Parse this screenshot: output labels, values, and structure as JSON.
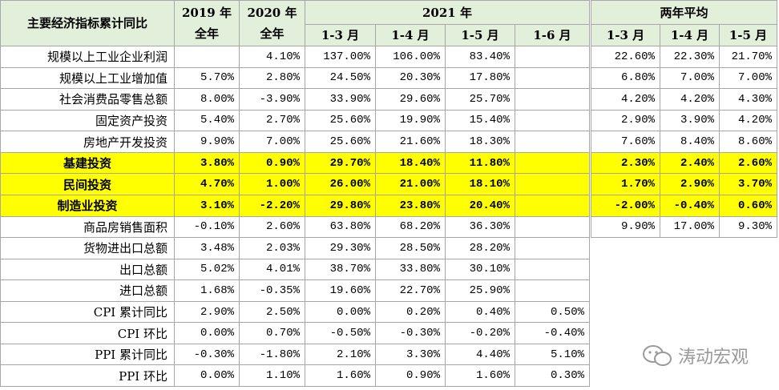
{
  "header": {
    "corner": "主要经济指标累计同比",
    "columns": [
      {
        "top": "2019 年",
        "bottom": "全年"
      },
      {
        "top": "2020 年",
        "bottom": "全年"
      }
    ],
    "group_2021": {
      "title": "2021 年",
      "periods": [
        "1-3 月",
        "1-4 月",
        "1-5 月",
        "1-6 月"
      ]
    },
    "group_avg": {
      "title": "两年平均",
      "periods": [
        "1-3 月",
        "1-4 月",
        "1-5 月"
      ]
    }
  },
  "rows": [
    {
      "label": "规模以上工业企业利润",
      "values": [
        null,
        "4.10%",
        "137.00%",
        "106.00%",
        "83.40%",
        null
      ],
      "avg": [
        "22.60%",
        "22.30%",
        "21.70%"
      ]
    },
    {
      "label": "规模以上工业增加值",
      "values": [
        "5.70%",
        "2.80%",
        "24.50%",
        "20.30%",
        "17.80%",
        null
      ],
      "avg": [
        "6.80%",
        "7.00%",
        "7.00%"
      ]
    },
    {
      "label": "社会消费品零售总额",
      "values": [
        "8.00%",
        "-3.90%",
        "33.90%",
        "29.60%",
        "25.70%",
        null
      ],
      "avg": [
        "4.20%",
        "4.20%",
        "4.30%"
      ]
    },
    {
      "label": "固定资产投资",
      "values": [
        "5.40%",
        "2.70%",
        "25.60%",
        "19.90%",
        "15.40%",
        null
      ],
      "avg": [
        "2.90%",
        "3.90%",
        "4.20%"
      ]
    },
    {
      "label": "房地产开发投资",
      "values": [
        "9.90%",
        "7.00%",
        "25.60%",
        "21.60%",
        "18.30%",
        null
      ],
      "avg": [
        "7.60%",
        "8.40%",
        "8.60%"
      ]
    },
    {
      "label": "基建投资",
      "values": [
        "3.80%",
        "0.90%",
        "29.70%",
        "18.40%",
        "11.80%",
        null
      ],
      "avg": [
        "2.30%",
        "2.40%",
        "2.60%"
      ],
      "highlight": true
    },
    {
      "label": "民间投资",
      "values": [
        "4.70%",
        "1.00%",
        "26.00%",
        "21.00%",
        "18.10%",
        null
      ],
      "avg": [
        "1.70%",
        "2.90%",
        "3.70%"
      ],
      "highlight": true
    },
    {
      "label": "制造业投资",
      "values": [
        "3.10%",
        "-2.20%",
        "29.80%",
        "23.80%",
        "20.40%",
        null
      ],
      "avg": [
        "-2.00%",
        "-0.40%",
        "0.60%"
      ],
      "highlight": true
    },
    {
      "label": "商品房销售面积",
      "values": [
        "-0.10%",
        "2.60%",
        "63.80%",
        "68.20%",
        "36.30%",
        null
      ],
      "avg": [
        "9.90%",
        "17.00%",
        "9.30%"
      ]
    },
    {
      "label": "货物进出口总额",
      "values": [
        "3.48%",
        "2.03%",
        "29.30%",
        "28.50%",
        "28.20%",
        null
      ]
    },
    {
      "label": "出口总额",
      "values": [
        "5.02%",
        "4.01%",
        "38.70%",
        "33.80%",
        "30.10%",
        null
      ]
    },
    {
      "label": "进口总额",
      "values": [
        "1.68%",
        "-0.35%",
        "19.60%",
        "22.70%",
        "25.90%",
        null
      ]
    },
    {
      "label": "CPI 累计同比",
      "values": [
        "2.90%",
        "2.50%",
        "0.00%",
        "0.20%",
        "0.40%",
        "0.50%"
      ]
    },
    {
      "label": "CPI 环比",
      "values": [
        "0.00%",
        "0.70%",
        "-0.50%",
        "-0.30%",
        "-0.20%",
        "-0.40%"
      ]
    },
    {
      "label": "PPI 累计同比",
      "values": [
        "-0.30%",
        "-1.80%",
        "2.10%",
        "3.30%",
        "4.40%",
        "5.10%"
      ]
    },
    {
      "label": "PPI 环比",
      "values": [
        "0.00%",
        "1.10%",
        "1.60%",
        "0.90%",
        "1.60%",
        "0.30%"
      ]
    }
  ],
  "watermark": "涛动宏观"
}
